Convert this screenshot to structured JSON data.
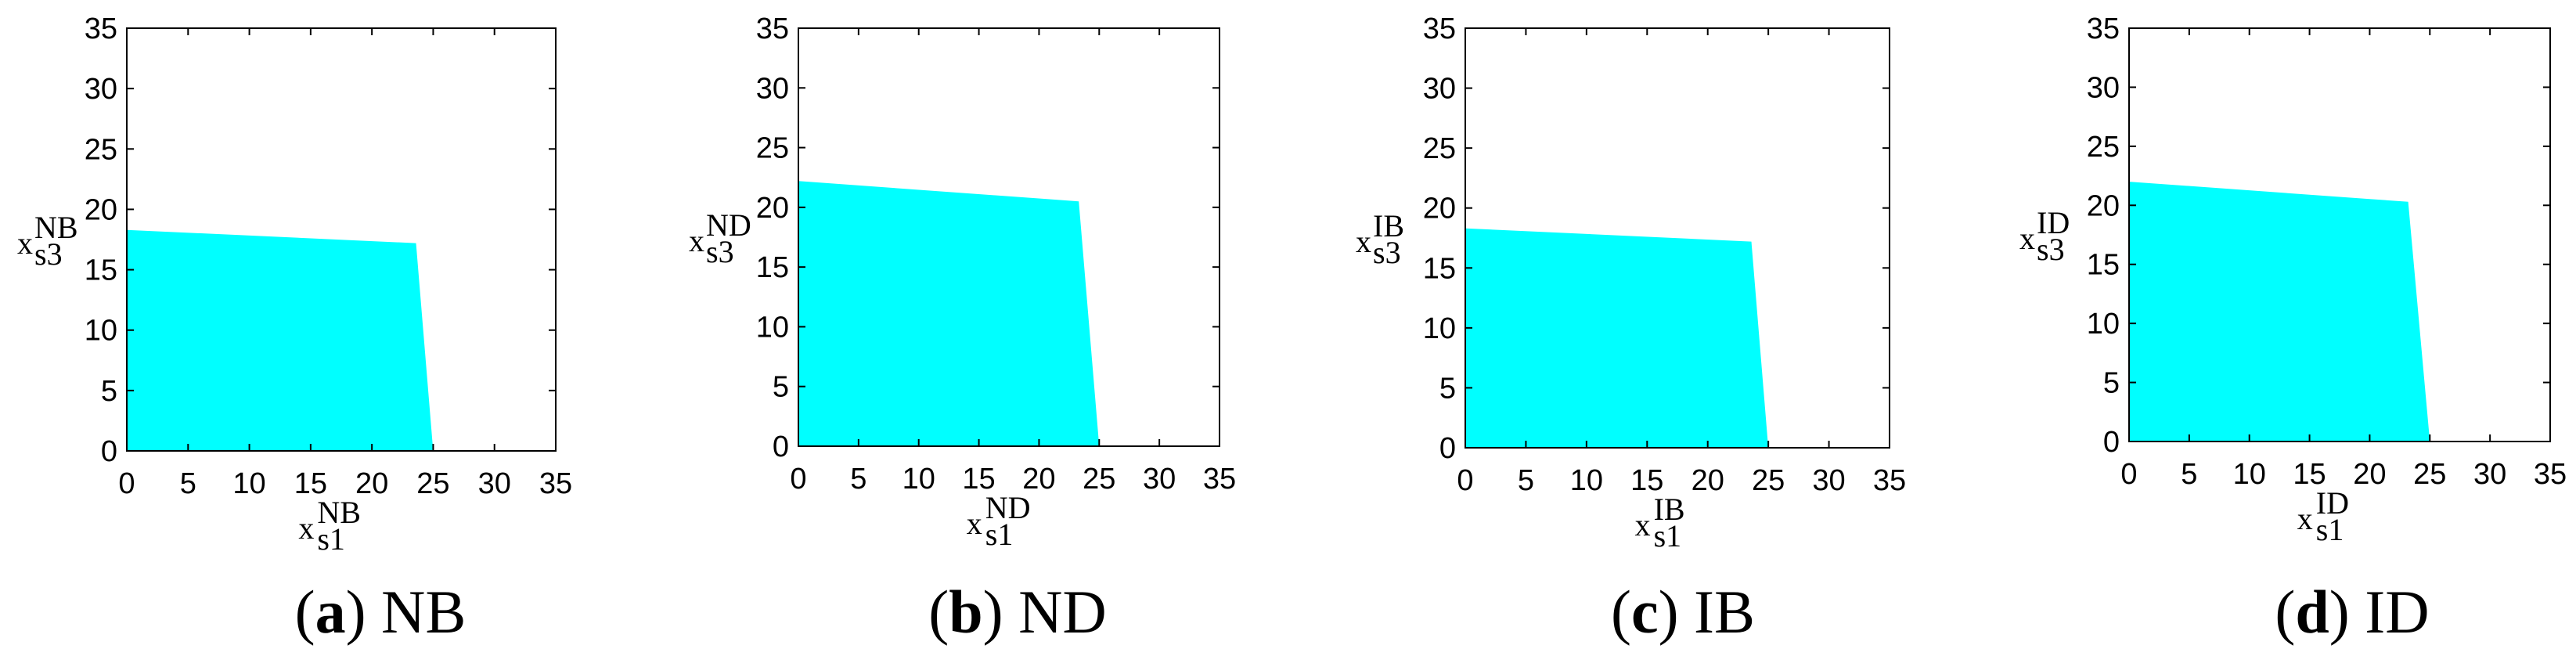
{
  "chart_data": [
    {
      "type": "area",
      "caption_letter": "a",
      "caption_text": "NB",
      "xlabel": "x",
      "xlabel_sup": "NB",
      "xlabel_sub": "s1",
      "ylabel": "x",
      "ylabel_sup": "NB",
      "ylabel_sub": "s3",
      "xlim": [
        0,
        35
      ],
      "ylim": [
        0,
        35
      ],
      "xticks": [
        0,
        5,
        10,
        15,
        20,
        25,
        30,
        35
      ],
      "yticks": [
        0,
        5,
        10,
        15,
        20,
        25,
        30,
        35
      ],
      "grid": false,
      "fill_color": "#00ffff",
      "polygon": [
        [
          0,
          0
        ],
        [
          0,
          18.3
        ],
        [
          23.6,
          17.2
        ],
        [
          25.0,
          0
        ]
      ]
    },
    {
      "type": "area",
      "caption_letter": "b",
      "caption_text": "ND",
      "xlabel": "x",
      "xlabel_sup": "ND",
      "xlabel_sub": "s1",
      "ylabel": "x",
      "ylabel_sup": "ND",
      "ylabel_sub": "s3",
      "xlim": [
        0,
        35
      ],
      "ylim": [
        0,
        35
      ],
      "xticks": [
        0,
        5,
        10,
        15,
        20,
        25,
        30,
        35
      ],
      "yticks": [
        0,
        5,
        10,
        15,
        20,
        25,
        30,
        35
      ],
      "grid": false,
      "fill_color": "#00ffff",
      "polygon": [
        [
          0,
          0
        ],
        [
          0,
          22.2
        ],
        [
          23.3,
          20.5
        ],
        [
          25.0,
          0
        ]
      ]
    },
    {
      "type": "area",
      "caption_letter": "c",
      "caption_text": "IB",
      "xlabel": "x",
      "xlabel_sup": "IB",
      "xlabel_sub": "s1",
      "ylabel": "x",
      "ylabel_sup": "IB",
      "ylabel_sub": "s3",
      "xlim": [
        0,
        35
      ],
      "ylim": [
        0,
        35
      ],
      "xticks": [
        0,
        5,
        10,
        15,
        20,
        25,
        30,
        35
      ],
      "yticks": [
        0,
        5,
        10,
        15,
        20,
        25,
        30,
        35
      ],
      "grid": false,
      "fill_color": "#00ffff",
      "polygon": [
        [
          0,
          0
        ],
        [
          0,
          18.3
        ],
        [
          23.6,
          17.2
        ],
        [
          25.0,
          0
        ]
      ]
    },
    {
      "type": "area",
      "caption_letter": "d",
      "caption_text": "ID",
      "xlabel": "x",
      "xlabel_sup": "ID",
      "xlabel_sub": "s1",
      "ylabel": "x",
      "ylabel_sup": "ID",
      "ylabel_sub": "s3",
      "xlim": [
        0,
        35
      ],
      "ylim": [
        0,
        35
      ],
      "xticks": [
        0,
        5,
        10,
        15,
        20,
        25,
        30,
        35
      ],
      "yticks": [
        0,
        5,
        10,
        15,
        20,
        25,
        30,
        35
      ],
      "grid": false,
      "fill_color": "#00ffff",
      "polygon": [
        [
          0,
          0
        ],
        [
          0,
          22.0
        ],
        [
          23.2,
          20.3
        ],
        [
          25.0,
          0
        ]
      ]
    }
  ]
}
